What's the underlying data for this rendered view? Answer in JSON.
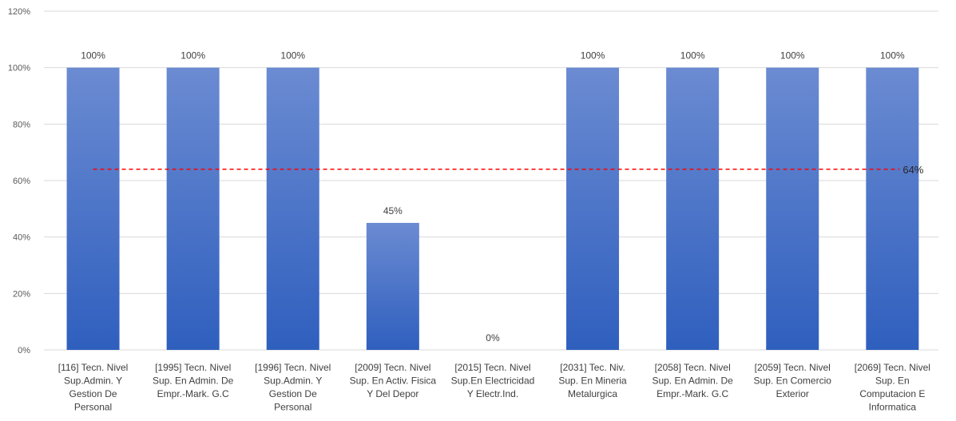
{
  "chart_data": {
    "type": "bar",
    "categories": [
      "[116] Tecn. Nivel Sup.Admin. Y Gestion De Personal",
      "[1995] Tecn. Nivel Sup. En Admin. De Empr.-Mark. G.C",
      "[1996] Tecn. Nivel Sup.Admin. Y Gestion De Personal",
      "[2009] Tecn. Nivel Sup. En Activ. Fisica Y Del Depor",
      "[2015] Tecn. Nivel Sup.En Electricidad Y Electr.Ind.",
      "[2031] Tec. Niv. Sup. En Mineria Metalurgica",
      "[2058] Tecn. Nivel Sup. En Admin. De Empr.-Mark. G.C",
      "[2059] Tecn. Nivel Sup. En Comercio Exterior",
      "[2069] Tecn. Nivel Sup. En Computacion E Informatica"
    ],
    "category_lines": [
      [
        "[116] Tecn. Nivel",
        "Sup.Admin. Y",
        "Gestion De",
        "Personal"
      ],
      [
        "[1995] Tecn. Nivel",
        "Sup. En Admin. De",
        "Empr.-Mark. G.C"
      ],
      [
        "[1996] Tecn. Nivel",
        "Sup.Admin. Y",
        "Gestion De",
        "Personal"
      ],
      [
        "[2009] Tecn. Nivel",
        "Sup. En Activ. Fisica",
        "Y Del Depor"
      ],
      [
        "[2015] Tecn. Nivel",
        "Sup.En Electricidad",
        "Y Electr.Ind."
      ],
      [
        "[2031] Tec. Niv.",
        "Sup. En Mineria",
        "Metalurgica"
      ],
      [
        "[2058] Tecn. Nivel",
        "Sup. En Admin. De",
        "Empr.-Mark. G.C"
      ],
      [
        "[2059] Tecn. Nivel",
        "Sup. En Comercio",
        "Exterior"
      ],
      [
        "[2069] Tecn. Nivel",
        "Sup. En",
        "Computacion E",
        "Informatica"
      ]
    ],
    "values": [
      100,
      100,
      100,
      45,
      0,
      100,
      100,
      100,
      100
    ],
    "data_labels": [
      "100%",
      "100%",
      "100%",
      "45%",
      "0%",
      "100%",
      "100%",
      "100%",
      "100%"
    ],
    "average": {
      "value": 64,
      "label": "64%",
      "color": "#ff0000"
    },
    "y_ticks": [
      0,
      20,
      40,
      60,
      80,
      100,
      120
    ],
    "y_tick_labels": [
      "0%",
      "20%",
      "40%",
      "60%",
      "80%",
      "100%",
      "120%"
    ],
    "ylim": [
      0,
      120
    ],
    "grid": true,
    "title": "",
    "xlabel": "",
    "ylabel": "",
    "colors": {
      "bar_top": "#6b8bd2",
      "bar_bottom": "#2f5fbe",
      "grid": "#d9d9d9"
    }
  }
}
